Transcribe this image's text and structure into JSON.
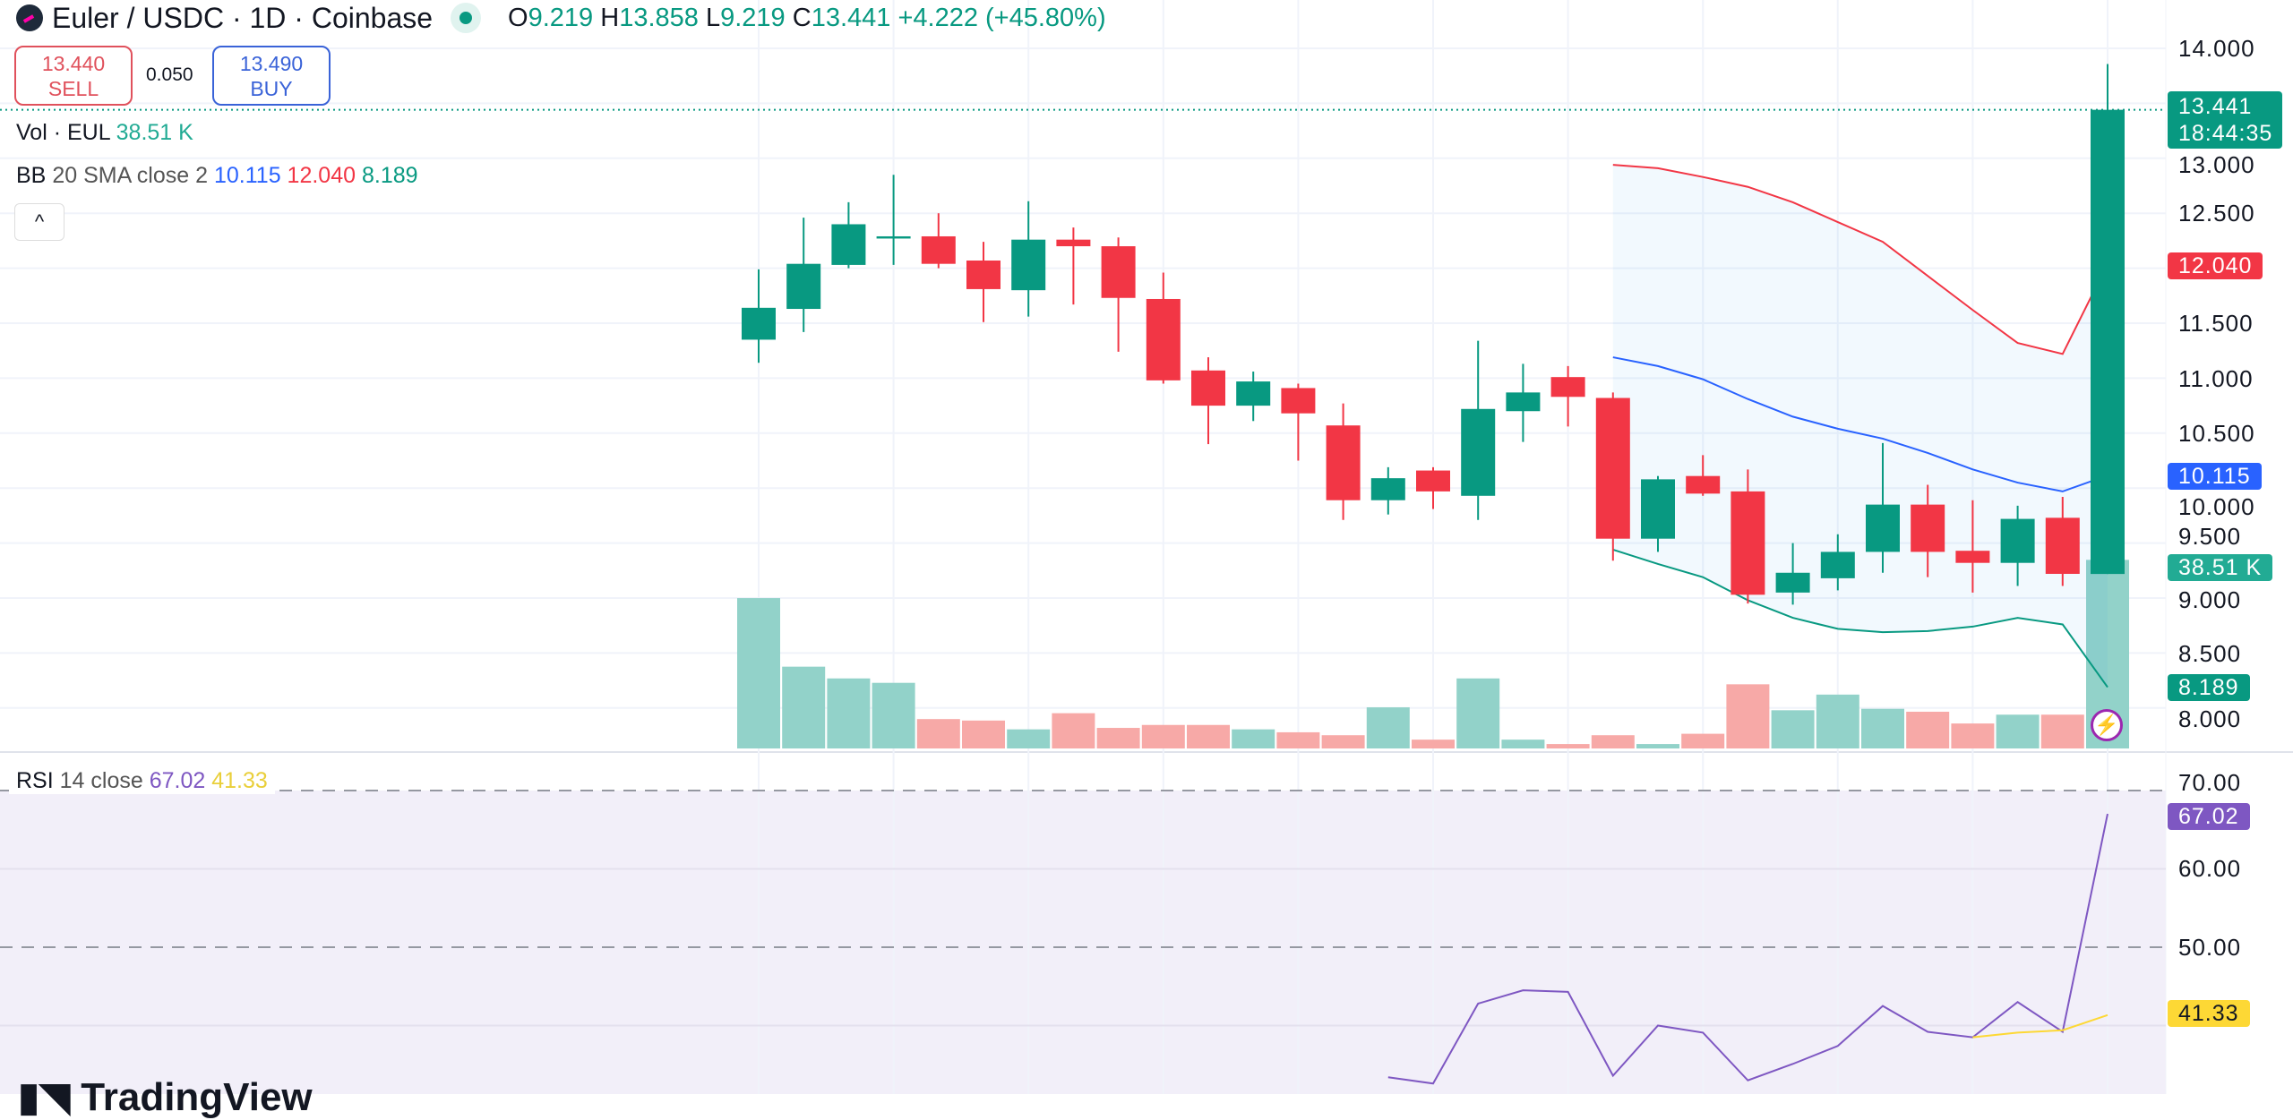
{
  "header": {
    "symbol_title": "Euler / USDC · 1D · Coinbase",
    "open_label": "O",
    "open": "9.219",
    "high_label": "H",
    "high": "13.858",
    "low_label": "L",
    "low": "9.219",
    "close_label": "C",
    "close": "13.441",
    "change": "+4.222 (+45.80%)"
  },
  "trade": {
    "sell_price": "13.440",
    "sell_label": "SELL",
    "spread": "0.050",
    "buy_price": "13.490",
    "buy_label": "BUY"
  },
  "indicators": {
    "vol_label": "Vol · EUL",
    "vol_value": "38.51 K",
    "bb_name": "BB",
    "bb_params": "20 SMA close 2",
    "bb_basis": "10.115",
    "bb_upper": "12.040",
    "bb_lower": "8.189",
    "collapse_icon": "^",
    "rsi_name": "RSI",
    "rsi_params": "14 close",
    "rsi_value": "67.02",
    "rsi_ma_value": "41.33"
  },
  "price_axis": {
    "ticks": [
      "14.000",
      "13.000",
      "12.500",
      "11.500",
      "11.000",
      "10.500",
      "10.000",
      "9.500",
      "9.000",
      "8.500",
      "8.000"
    ],
    "last_price": "13.441",
    "countdown": "18:44:35",
    "bb_upper_badge": "12.040",
    "bb_basis_badge": "10.115",
    "volume_badge": "38.51 K",
    "bb_lower_badge": "8.189"
  },
  "rsi_axis": {
    "ticks": [
      "70.00",
      "60.00",
      "50.00"
    ],
    "rsi_badge": "67.02",
    "rsi_ma_badge": "41.33"
  },
  "branding": {
    "logo_text": "TradingView"
  },
  "colors": {
    "up": "#089981",
    "down": "#f23645",
    "bb_basis": "#2962ff",
    "bb_upper": "#f23645",
    "bb_lower": "#089981",
    "rsi": "#7e57c2",
    "rsi_ma": "#fdd835",
    "vol_up": "#92d2c9",
    "vol_down": "#f7a9a7"
  },
  "chart_data": {
    "type": "candlestick",
    "price_range": [
      7.75,
      14.25
    ],
    "candles": [
      [
        11.35,
        11.99,
        11.14,
        11.64
      ],
      [
        11.63,
        12.46,
        11.42,
        12.04
      ],
      [
        12.03,
        12.6,
        12.0,
        12.4
      ],
      [
        12.27,
        12.85,
        12.03,
        12.29
      ],
      [
        12.29,
        12.5,
        12.0,
        12.04
      ],
      [
        12.07,
        12.24,
        11.51,
        11.81
      ],
      [
        11.8,
        12.61,
        11.56,
        12.26
      ],
      [
        12.26,
        12.37,
        11.67,
        12.2
      ],
      [
        12.2,
        12.28,
        11.24,
        11.73
      ],
      [
        11.72,
        11.96,
        10.95,
        10.98
      ],
      [
        11.07,
        11.19,
        10.4,
        10.75
      ],
      [
        10.75,
        11.06,
        10.61,
        10.97
      ],
      [
        10.91,
        10.95,
        10.25,
        10.68
      ],
      [
        10.57,
        10.77,
        9.71,
        9.89
      ],
      [
        9.89,
        10.19,
        9.76,
        10.09
      ],
      [
        10.16,
        10.19,
        9.81,
        9.97
      ],
      [
        9.93,
        11.34,
        9.71,
        10.72
      ],
      [
        10.7,
        11.13,
        10.42,
        10.87
      ],
      [
        11.01,
        11.11,
        10.56,
        10.83
      ],
      [
        10.82,
        10.87,
        9.34,
        9.54
      ],
      [
        9.54,
        10.11,
        9.42,
        10.08
      ],
      [
        10.11,
        10.3,
        9.93,
        9.95
      ],
      [
        9.97,
        10.17,
        8.95,
        9.03
      ],
      [
        9.05,
        9.5,
        8.94,
        9.23
      ],
      [
        9.18,
        9.58,
        9.07,
        9.42
      ],
      [
        9.42,
        10.41,
        9.23,
        9.85
      ],
      [
        9.85,
        10.03,
        9.19,
        9.42
      ],
      [
        9.43,
        9.89,
        9.05,
        9.32
      ],
      [
        9.32,
        9.84,
        9.11,
        9.72
      ],
      [
        9.73,
        9.92,
        9.11,
        9.22
      ],
      [
        9.219,
        13.858,
        9.219,
        13.441
      ]
    ],
    "volume_k": [
      30.7,
      16.7,
      14.3,
      13.4,
      6.0,
      5.7,
      3.9,
      7.2,
      4.2,
      4.8,
      4.8,
      3.9,
      3.3,
      2.7,
      8.4,
      1.8,
      14.3,
      1.8,
      0.9,
      2.7,
      0.9,
      3.0,
      13.1,
      7.8,
      11.0,
      8.1,
      7.5,
      5.1,
      6.9,
      6.9,
      38.51
    ],
    "bollinger": {
      "start_index": 19,
      "upper": [
        12.94,
        12.91,
        12.83,
        12.74,
        12.6,
        12.42,
        12.24,
        11.93,
        11.62,
        11.32,
        11.22,
        12.04
      ],
      "basis": [
        11.19,
        11.11,
        10.99,
        10.81,
        10.65,
        10.54,
        10.45,
        10.32,
        10.17,
        10.05,
        9.97,
        10.115
      ],
      "lower": [
        9.44,
        9.31,
        9.19,
        8.98,
        8.82,
        8.72,
        8.69,
        8.7,
        8.74,
        8.82,
        8.76,
        8.189
      ]
    },
    "rsi": {
      "start_index": 14,
      "values": [
        33.4,
        32.6,
        42.8,
        44.5,
        44.3,
        33.6,
        40.0,
        39.1,
        33.0,
        35.1,
        37.4,
        42.5,
        39.2,
        38.5,
        43.0,
        39.2,
        67.02
      ],
      "ma_start_index": 27,
      "ma_values": [
        38.5,
        39.1,
        39.4,
        41.33
      ],
      "levels": [
        70,
        50
      ],
      "range": [
        30,
        72
      ]
    }
  }
}
